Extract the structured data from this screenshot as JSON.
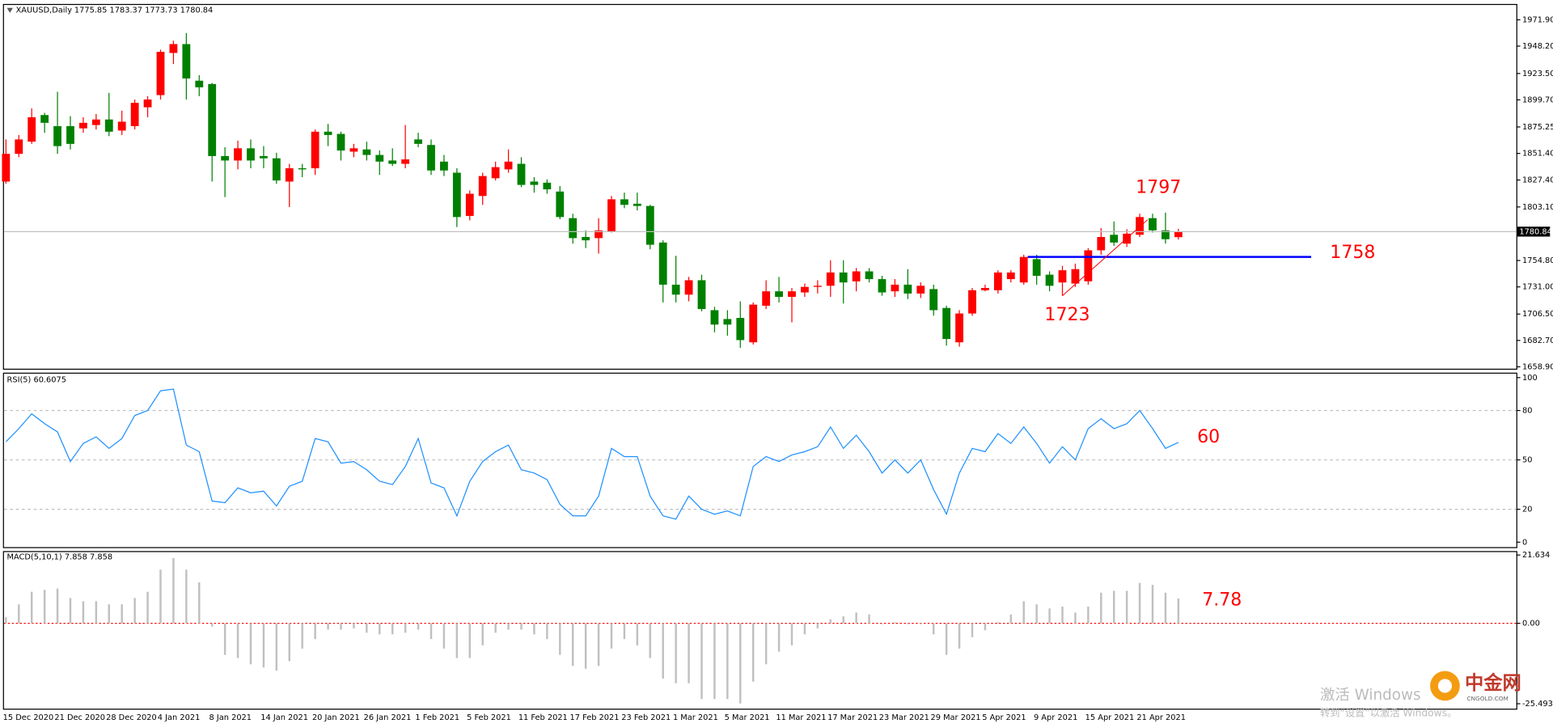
{
  "chart_data": [
    {
      "type": "candlestick",
      "title": "XAUUSD,Daily",
      "subtitle": "1775.85 1783.37 1773.73 1780.84",
      "categories": [
        "15 Dec 2020",
        null,
        null,
        null,
        "21 Dec 2020",
        null,
        null,
        null,
        "28 Dec 2020",
        null,
        null,
        null,
        "4 Jan 2021",
        null,
        null,
        null,
        "8 Jan 2021",
        null,
        null,
        null,
        "14 Jan 2021",
        null,
        null,
        null,
        "20 Jan 2021",
        null,
        null,
        null,
        "26 Jan 2021",
        null,
        null,
        null,
        "1 Feb 2021",
        null,
        null,
        null,
        "5 Feb 2021",
        null,
        null,
        null,
        "11 Feb 2021",
        null,
        null,
        null,
        "17 Feb 2021",
        null,
        null,
        null,
        "23 Feb 2021",
        null,
        null,
        null,
        "1 Mar 2021",
        null,
        null,
        null,
        "5 Mar 2021",
        null,
        null,
        null,
        "11 Mar 2021",
        null,
        null,
        null,
        "17 Mar 2021",
        null,
        null,
        null,
        "23 Mar 2021",
        null,
        null,
        null,
        "29 Mar 2021",
        null,
        null,
        null,
        "5 Apr 2021",
        null,
        null,
        null,
        "9 Apr 2021",
        null,
        null,
        null,
        "15 Apr 2021",
        null,
        null,
        null,
        "21 Apr 2021",
        null,
        null,
        null
      ],
      "open": [
        1826,
        1851,
        1862,
        1886,
        1876,
        1876,
        1874,
        1877,
        1882,
        1872,
        1876,
        1893,
        1904,
        1942,
        1950,
        1917,
        1914,
        1849,
        1845,
        1856,
        1849,
        1847,
        1826,
        1838,
        1838,
        1871,
        1869,
        1853,
        1855,
        1850,
        1845,
        1842,
        1864,
        1859,
        1844,
        1834,
        1795,
        1813,
        1829,
        1837,
        1842,
        1826,
        1825,
        1817,
        1793,
        1776,
        1775,
        1781,
        1810,
        1806,
        1804,
        1771,
        1733,
        1724,
        1737,
        1710,
        1702,
        1703,
        1681,
        1714,
        1727,
        1722,
        1726,
        1731,
        1732,
        1744,
        1736,
        1745,
        1738,
        1727,
        1733,
        1725,
        1729,
        1712,
        1681,
        1707,
        1728,
        1728,
        1738,
        1735,
        1756,
        1742,
        1735,
        1734,
        1736,
        1764,
        1778,
        1770,
        1778,
        1793,
        1782,
        1775.85
      ],
      "high": [
        1864,
        1868,
        1892,
        1888,
        1907,
        1885,
        1884,
        1887,
        1906,
        1890,
        1900,
        1903,
        1945,
        1953,
        1960,
        1922,
        1915,
        1857,
        1863,
        1864,
        1858,
        1852,
        1842,
        1842,
        1873,
        1878,
        1871,
        1860,
        1862,
        1854,
        1856,
        1877,
        1870,
        1864,
        1850,
        1838,
        1818,
        1834,
        1844,
        1855,
        1848,
        1830,
        1828,
        1822,
        1797,
        1782,
        1793,
        1813,
        1816,
        1816,
        1805,
        1773,
        1759,
        1740,
        1742,
        1713,
        1710,
        1718,
        1717,
        1737,
        1740,
        1730,
        1734,
        1737,
        1755,
        1755,
        1748,
        1748,
        1741,
        1738,
        1747,
        1735,
        1733,
        1714,
        1710,
        1730,
        1733,
        1746,
        1746,
        1760,
        1760,
        1745,
        1750,
        1752,
        1766,
        1784,
        1790,
        1783,
        1797,
        1797,
        1798,
        1783.37
      ],
      "low": [
        1824,
        1848,
        1860,
        1870,
        1851,
        1855,
        1870,
        1873,
        1867,
        1868,
        1873,
        1884,
        1900,
        1932,
        1900,
        1903,
        1826,
        1812,
        1837,
        1838,
        1838,
        1824,
        1803,
        1830,
        1832,
        1858,
        1845,
        1848,
        1845,
        1832,
        1840,
        1838,
        1857,
        1832,
        1831,
        1785,
        1791,
        1805,
        1827,
        1834,
        1821,
        1816,
        1815,
        1792,
        1770,
        1766,
        1761,
        1780,
        1802,
        1800,
        1765,
        1717,
        1717,
        1718,
        1709,
        1690,
        1687,
        1676,
        1679,
        1711,
        1717,
        1699,
        1722,
        1725,
        1722,
        1716,
        1727,
        1735,
        1723,
        1722,
        1720,
        1721,
        1705,
        1678,
        1677,
        1705,
        1727,
        1725,
        1735,
        1733,
        1733,
        1727,
        1723,
        1731,
        1733,
        1760,
        1768,
        1767,
        1776,
        1780,
        1770,
        1773.73
      ],
      "close": [
        1851,
        1864,
        1884,
        1879,
        1858,
        1860,
        1879,
        1882,
        1871,
        1880,
        1897,
        1900,
        1943,
        1950,
        1919,
        1911,
        1849,
        1845,
        1856,
        1845,
        1847,
        1827,
        1838,
        1837,
        1871,
        1868,
        1854,
        1856,
        1850,
        1844,
        1842,
        1846,
        1860,
        1836,
        1836,
        1794,
        1815,
        1831,
        1839,
        1844,
        1823,
        1823,
        1819,
        1794,
        1775,
        1773,
        1782,
        1810,
        1805,
        1804,
        1769,
        1733,
        1724,
        1737,
        1711,
        1697,
        1697,
        1683,
        1715,
        1727,
        1722,
        1727,
        1731,
        1732,
        1744,
        1735,
        1745,
        1738,
        1726,
        1733,
        1725,
        1732,
        1710,
        1684,
        1707,
        1728,
        1730,
        1744,
        1744,
        1758,
        1741,
        1732,
        1746,
        1747,
        1764,
        1776,
        1771,
        1779,
        1794,
        1782,
        1774,
        1780.84
      ],
      "up_color": "#ff0000",
      "down_color": "#008000",
      "ylim": [
        1656.3,
        1986.2
      ],
      "yticks": [
        {
          "value": 1971.9,
          "label": "1971.90"
        },
        {
          "value": 1948.2,
          "label": "1948.20"
        },
        {
          "value": 1923.5,
          "label": "1923.50"
        },
        {
          "value": 1899.7,
          "label": "1899.70"
        },
        {
          "value": 1875.25,
          "label": "1875.25"
        },
        {
          "value": 1851.4,
          "label": "1851.40"
        },
        {
          "value": 1827.4,
          "label": "1827.40"
        },
        {
          "value": 1803.1,
          "label": "1803.10"
        },
        {
          "value": 1754.8,
          "label": "1754.80"
        },
        {
          "value": 1731,
          "label": "1731.00"
        },
        {
          "value": 1706.5,
          "label": "1706.50"
        },
        {
          "value": 1682.7,
          "label": "1682.70"
        },
        {
          "value": 1658.9,
          "label": "1658.90"
        }
      ],
      "level": 1758,
      "level_color": "#0000ff",
      "high_annotation": 1797,
      "low_annotation": 1723,
      "annotation_color": "#ff0000"
    },
    {
      "type": "line",
      "title": "RSI(5) 60.6075",
      "color": "#1e90ff",
      "values": [
        61,
        69,
        78,
        72,
        67,
        49,
        60,
        64,
        57,
        63,
        77,
        80,
        92,
        93,
        59,
        55,
        25,
        24,
        33,
        30,
        31,
        22,
        34,
        37,
        63,
        61,
        48,
        49,
        44,
        37,
        35,
        46,
        63,
        36,
        33,
        16,
        37,
        49,
        55,
        59,
        44,
        42,
        38,
        23,
        16,
        16,
        28,
        57,
        52,
        52,
        28,
        16,
        14,
        28,
        20,
        17,
        19,
        16,
        46,
        52,
        49,
        53,
        55,
        58,
        70,
        57,
        65,
        55,
        42,
        50,
        42,
        50,
        32,
        17,
        42,
        57,
        55,
        66,
        60,
        70,
        60,
        48,
        58,
        50,
        69,
        75,
        69,
        72,
        80,
        69,
        57,
        60.6075
      ],
      "ylim": [
        -3.6,
        103
      ],
      "yticks": [
        100,
        80,
        50,
        20,
        0
      ],
      "grid": [
        80,
        50,
        20
      ],
      "annotation": 60
    },
    {
      "type": "bar",
      "title": "MACD(5,10,1) 7.858 7.858",
      "color": "#c0c0c0",
      "values": [
        2,
        6,
        10,
        10.6,
        11,
        8,
        7,
        7,
        6,
        6,
        8,
        10,
        17,
        20.7,
        17,
        13,
        -1,
        -10,
        -11,
        -13,
        -14,
        -15,
        -12,
        -8,
        -5,
        -2,
        -2,
        -1.6,
        -3,
        -3.5,
        -3.5,
        -3,
        -2,
        -5,
        -8,
        -11,
        -11,
        -7,
        -3,
        -2,
        -2,
        -3.5,
        -5,
        -10,
        -13.5,
        -14.4,
        -13.5,
        -8,
        -5,
        -7,
        -11,
        -17.5,
        -19,
        -19,
        -24,
        -24,
        -24,
        -25.4,
        -18.5,
        -13,
        -9,
        -7,
        -3.5,
        -1.6,
        1.3,
        2.2,
        3.4,
        2.8,
        -0.3,
        0.3,
        -0.3,
        -0.3,
        -3.5,
        -10,
        -8,
        -4.4,
        -2.2,
        0.3,
        2.8,
        7,
        6,
        4.7,
        5.3,
        3.4,
        5.3,
        9.7,
        10.3,
        10.3,
        12.8,
        12.2,
        9.7,
        7.858
      ],
      "ylim": [
        -27.37,
        22.89
      ],
      "yticks": [
        21.634,
        {
          "value": 0,
          "label": "0.00"
        },
        -25.493
      ],
      "annotation": 7.78
    }
  ],
  "watermark": {
    "line1": "激活 Windows",
    "line2": "转到“设置”以激活 Windows。",
    "logo": "中金网",
    "logo_sub": "CNGOLD.COM"
  }
}
